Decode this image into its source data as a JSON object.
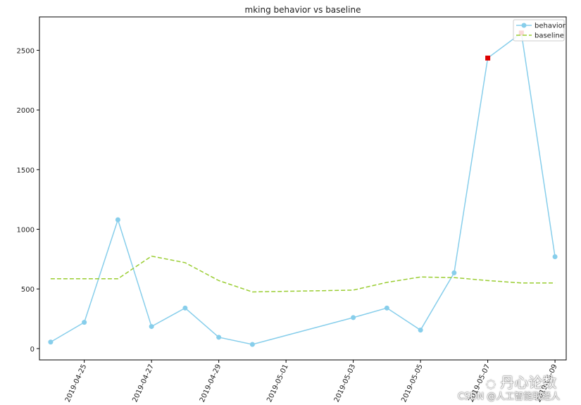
{
  "chart_data": {
    "type": "line",
    "title": "mking behavior vs baseline",
    "xlabel": "",
    "ylabel": "",
    "x_dates": [
      "2019-04-24",
      "2019-04-25",
      "2019-04-26",
      "2019-04-27",
      "2019-04-28",
      "2019-04-29",
      "2019-04-30",
      "2019-05-03",
      "2019-05-04",
      "2019-05-05",
      "2019-05-06",
      "2019-05-07",
      "2019-05-08",
      "2019-05-09"
    ],
    "series": [
      {
        "name": "behavior",
        "color": "#87ceeb",
        "style": "solid",
        "marker": "circle",
        "values": [
          55,
          220,
          1080,
          185,
          340,
          95,
          35,
          260,
          340,
          155,
          635,
          2435,
          2645,
          770
        ]
      },
      {
        "name": "baseline",
        "color": "#9acd32",
        "style": "dashed",
        "marker": "none",
        "values": [
          585,
          585,
          585,
          775,
          720,
          570,
          475,
          490,
          555,
          600,
          595,
          570,
          550,
          550
        ]
      }
    ],
    "anomalies": {
      "color": "#dd0000",
      "marker": "square",
      "x_dates": [
        "2019-05-07",
        "2019-05-08"
      ],
      "values": [
        2435,
        2645
      ]
    },
    "xticks": [
      "2019-04-25",
      "2019-04-27",
      "2019-04-29",
      "2019-05-01",
      "2019-05-03",
      "2019-05-05",
      "2019-05-07",
      "2019-05-09"
    ],
    "xtick_labels": [
      "2019-04-25",
      "2019-04-27",
      "2019-04-29",
      "2019-05-01",
      "2019-05-03",
      "2019-05-05",
      "2019-05-07",
      "2019-05-09"
    ],
    "yticks": [
      0,
      500,
      1000,
      1500,
      2000,
      2500
    ],
    "xlim": [
      "2019-04-23T16:00",
      "2019-05-09T08:00"
    ],
    "ylim": [
      -95,
      2780
    ],
    "grid": false,
    "legend_position": "upper right"
  },
  "watermark": {
    "icon": "dandelion-chat-icon",
    "brand": "丹心论数",
    "credit": "CSDN @人工智能取经人"
  }
}
